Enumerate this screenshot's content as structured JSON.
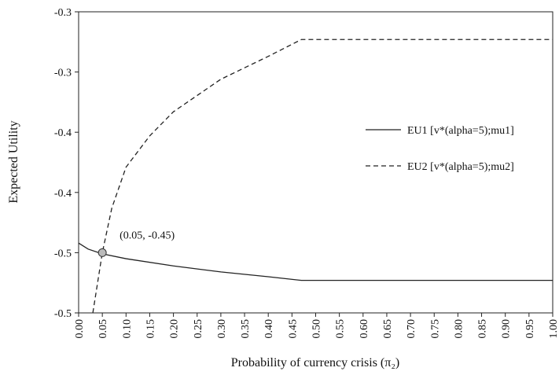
{
  "chart_data": {
    "type": "line",
    "xlabel": "Probability of currency crisis (π₂)",
    "ylabel": "Expected Utility",
    "xlim": [
      0,
      1
    ],
    "ylim": [
      -0.5,
      -0.25
    ],
    "xticks": [
      {
        "value": 0,
        "label": "0.00"
      },
      0.05,
      {
        "value": 0.1,
        "label": "0.10"
      },
      0.15,
      {
        "value": 0.2,
        "label": "0.20"
      },
      0.25,
      {
        "value": 0.3,
        "label": "0.30"
      },
      0.35,
      {
        "value": 0.4,
        "label": "0.40"
      },
      0.45,
      {
        "value": 0.5,
        "label": "0.50"
      },
      0.55,
      {
        "value": 0.6,
        "label": "0.60"
      },
      0.65,
      {
        "value": 0.7,
        "label": "0.70"
      },
      0.75,
      {
        "value": 0.8,
        "label": "0.80"
      },
      0.85,
      {
        "value": 0.9,
        "label": "0.90"
      },
      0.95,
      {
        "value": 1,
        "label": "1.00"
      }
    ],
    "yticks": [
      {
        "value": -0.5,
        "label": "-0.5"
      },
      {
        "value": -0.45,
        "label": "-0.5"
      },
      {
        "value": -0.4,
        "label": "-0.4"
      },
      {
        "value": -0.35,
        "label": "-0.4"
      },
      {
        "value": -0.3,
        "label": "-0.3"
      },
      {
        "value": -0.25,
        "label": "-0.3"
      }
    ],
    "series": [
      {
        "name": "EU1 [v*(alpha=5);mu1]",
        "color": "#222222",
        "dash": "none",
        "x": [
          0,
          0.02,
          0.05,
          0.1,
          0.2,
          0.3,
          0.4,
          0.47,
          1
        ],
        "values": [
          -0.442,
          -0.447,
          -0.451,
          -0.455,
          -0.461,
          -0.466,
          -0.47,
          -0.473,
          -0.473
        ]
      },
      {
        "name": "EU2 [v*(alpha=5);mu2]",
        "color": "#222222",
        "dash": "6,4",
        "x": [
          0.03,
          0.05,
          0.07,
          0.1,
          0.15,
          0.2,
          0.3,
          0.4,
          0.47,
          1
        ],
        "values": [
          -0.5,
          -0.45,
          -0.413,
          -0.379,
          -0.353,
          -0.333,
          -0.306,
          -0.287,
          -0.273,
          -0.273
        ]
      }
    ],
    "annotation": {
      "text": "(0.05, -0.45)",
      "x": 0.05,
      "y": -0.45
    },
    "legend": "right"
  }
}
